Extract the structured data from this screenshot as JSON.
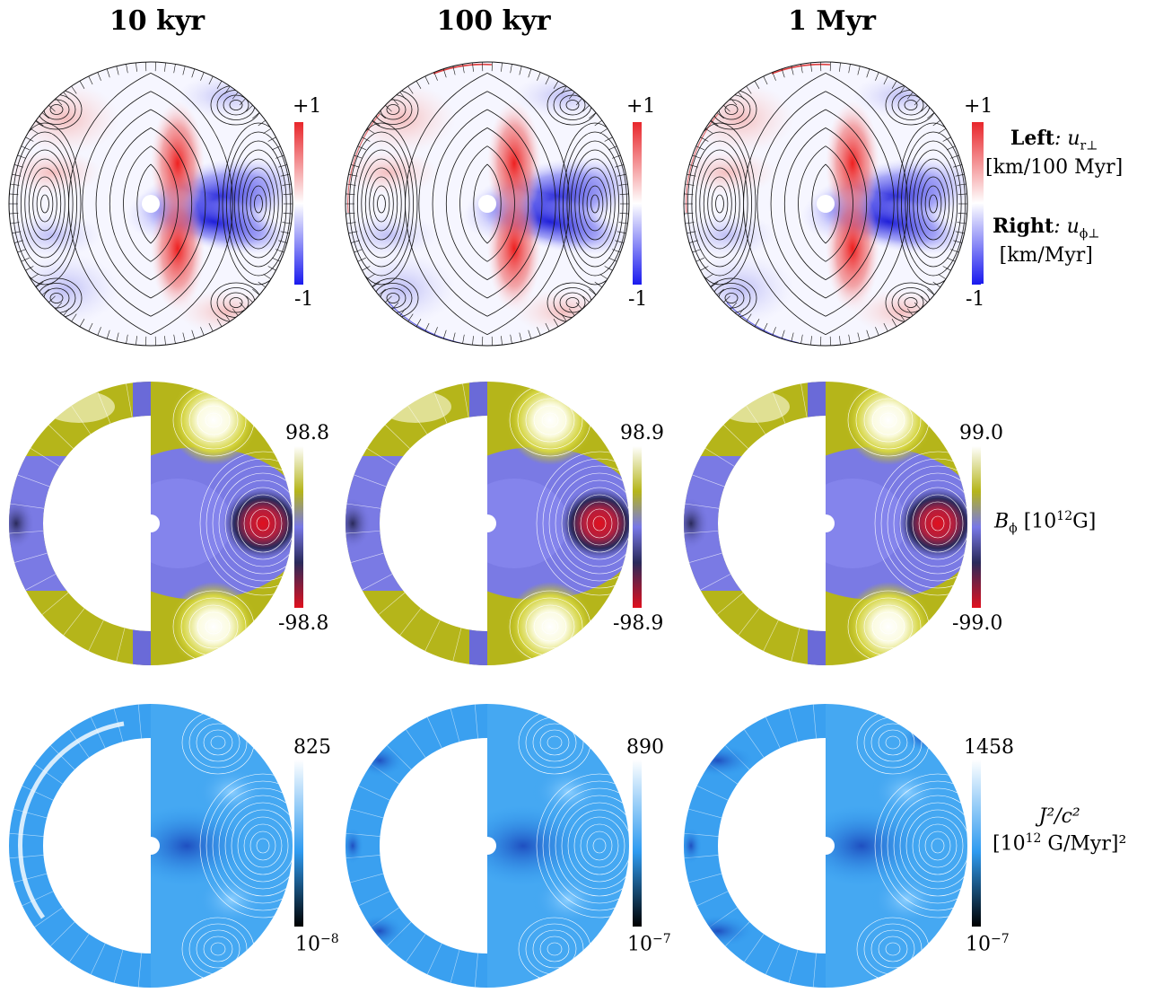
{
  "columns": [
    {
      "title": "10 kyr"
    },
    {
      "title": "100 kyr"
    },
    {
      "title": "1 Myr"
    }
  ],
  "rows": [
    {
      "name": "velocity",
      "colorbars": [
        {
          "max_label": "+1",
          "min_label": "-1"
        },
        {
          "max_label": "+1",
          "min_label": "-1"
        },
        {
          "max_label": "+1",
          "min_label": "-1"
        }
      ],
      "side_label": {
        "left_bold": "Left",
        "left_var": ": u",
        "left_sub": "r⊥",
        "left_unit": "[km/100 Myr]",
        "right_bold": "Right",
        "right_var": ": u",
        "right_sub": "ϕ⊥",
        "right_unit": "[km/Myr]"
      },
      "colors": {
        "high": "#e8262b",
        "mid": "#ffffff",
        "low": "#1a1aee"
      }
    },
    {
      "name": "toroidal-field",
      "colorbars": [
        {
          "max_label": "98.8",
          "min_label": "-98.8"
        },
        {
          "max_label": "98.9",
          "min_label": "-98.9"
        },
        {
          "max_label": "99.0",
          "min_label": "-99.0"
        }
      ],
      "side_label": {
        "var": "B",
        "sub": "ϕ",
        "unit_pre": " [10",
        "unit_sup": "12",
        "unit_post": "G]"
      },
      "colors": {
        "high": "#ffffff",
        "upper": "#b5b51a",
        "mid": "#7878e6",
        "lower": "#2a2a5a",
        "low": "#e0101e"
      }
    },
    {
      "name": "current-density",
      "colorbars": [
        {
          "max_label": "825",
          "min_label_base": "10",
          "min_label_exp": "−8"
        },
        {
          "max_label": "890",
          "min_label_base": "10",
          "min_label_exp": "−7"
        },
        {
          "max_label": "1458",
          "min_label_base": "10",
          "min_label_exp": "−7"
        }
      ],
      "side_label": {
        "line1": "J²/c²",
        "line2_pre": "[10",
        "line2_sup": "12",
        "line2_post": " G/Myr]²"
      },
      "colors": {
        "high": "#ffffff",
        "mid": "#2f9bf0",
        "low": "#000000"
      }
    }
  ]
}
